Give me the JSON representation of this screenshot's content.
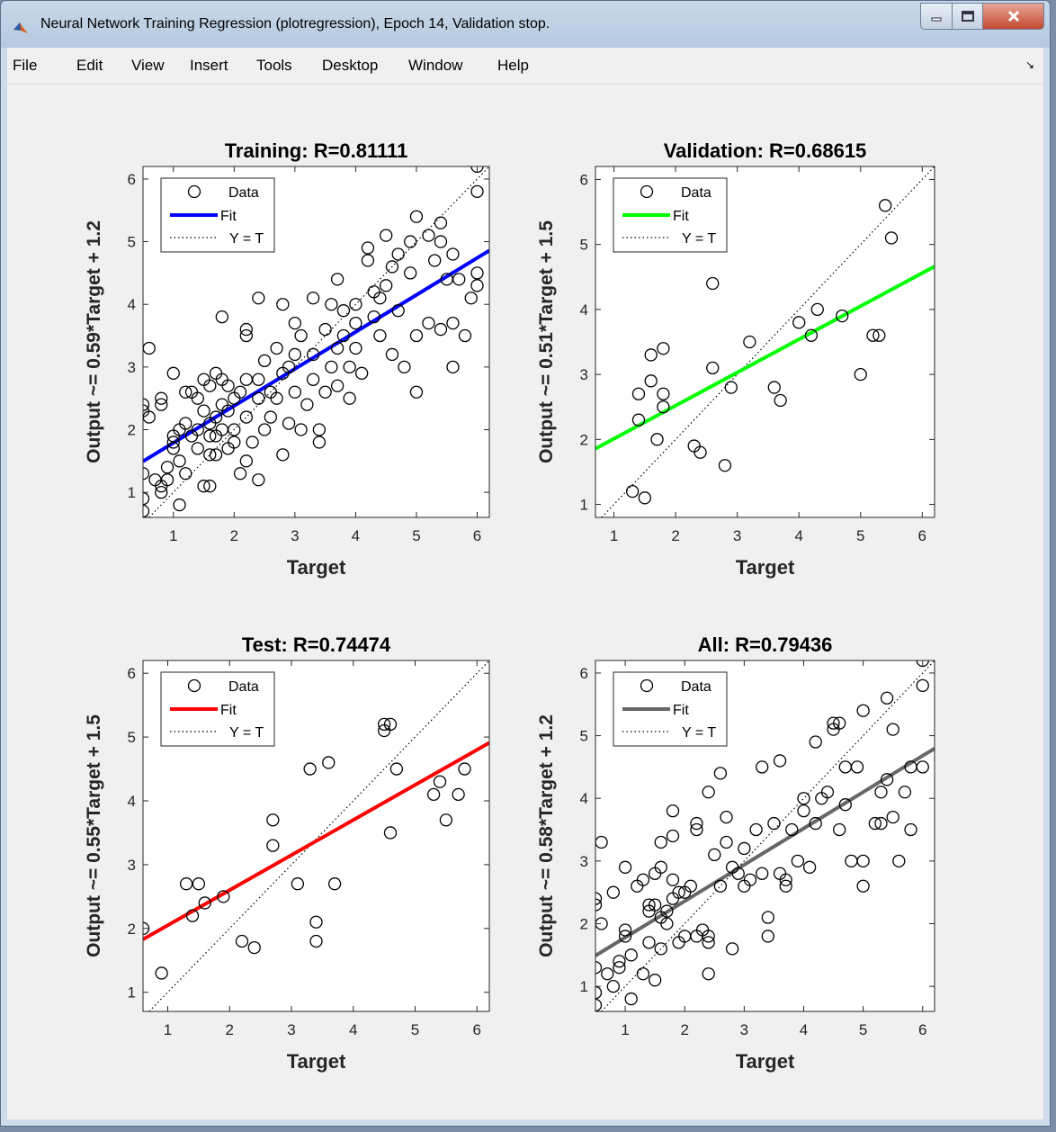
{
  "window": {
    "title": "Neural Network Training Regression (plotregression), Epoch 14, Validation stop.",
    "min_label": "",
    "max_label": "",
    "close_label": ""
  },
  "menu": [
    "File",
    "Edit",
    "View",
    "Insert",
    "Tools",
    "Desktop",
    "Window",
    "Help"
  ],
  "legend_labels": [
    "Data",
    "Fit",
    "Y = T"
  ],
  "colors": {
    "training": "#0000ff",
    "validation": "#00ff00",
    "test": "#ff0000",
    "all": "#666666"
  },
  "chart_data": [
    {
      "type": "scatter",
      "title": "Training: R=0.81111",
      "xlabel": "Target",
      "ylabel": "Output ~= 0.59*Target + 1.2",
      "xlim": [
        0.5,
        6.2
      ],
      "ylim": [
        0.6,
        6.2
      ],
      "xticks": [
        1,
        2,
        3,
        4,
        5,
        6
      ],
      "yticks": [
        1,
        2,
        3,
        4,
        5,
        6
      ],
      "fit": {
        "slope": 0.59,
        "intercept": 1.2
      },
      "legend": [
        "Data",
        "Fit",
        "Y = T"
      ],
      "points": [
        [
          0.5,
          0.7
        ],
        [
          0.5,
          0.9
        ],
        [
          0.5,
          1.3
        ],
        [
          0.5,
          2.3
        ],
        [
          0.5,
          2.4
        ],
        [
          0.6,
          2.2
        ],
        [
          0.6,
          3.3
        ],
        [
          0.7,
          1.2
        ],
        [
          0.8,
          1.1
        ],
        [
          0.8,
          1.0
        ],
        [
          0.8,
          2.4
        ],
        [
          0.8,
          2.5
        ],
        [
          0.9,
          1.2
        ],
        [
          0.9,
          1.4
        ],
        [
          1.0,
          1.8
        ],
        [
          1.0,
          1.9
        ],
        [
          1.0,
          2.9
        ],
        [
          1.0,
          1.7
        ],
        [
          1.1,
          0.8
        ],
        [
          1.1,
          1.5
        ],
        [
          1.1,
          2.0
        ],
        [
          1.2,
          1.3
        ],
        [
          1.2,
          2.6
        ],
        [
          1.2,
          2.1
        ],
        [
          1.3,
          2.6
        ],
        [
          1.3,
          1.9
        ],
        [
          1.4,
          2.0
        ],
        [
          1.4,
          1.7
        ],
        [
          1.4,
          2.5
        ],
        [
          1.5,
          2.3
        ],
        [
          1.5,
          2.8
        ],
        [
          1.5,
          1.1
        ],
        [
          1.6,
          1.1
        ],
        [
          1.6,
          1.6
        ],
        [
          1.6,
          2.1
        ],
        [
          1.6,
          2.7
        ],
        [
          1.6,
          1.9
        ],
        [
          1.7,
          2.9
        ],
        [
          1.7,
          2.2
        ],
        [
          1.7,
          1.9
        ],
        [
          1.7,
          1.6
        ],
        [
          1.8,
          3.8
        ],
        [
          1.8,
          2.8
        ],
        [
          1.8,
          2.4
        ],
        [
          1.8,
          2.0
        ],
        [
          1.9,
          1.7
        ],
        [
          1.9,
          2.3
        ],
        [
          1.9,
          2.7
        ],
        [
          2.0,
          2.0
        ],
        [
          2.0,
          2.5
        ],
        [
          2.0,
          1.8
        ],
        [
          2.1,
          2.6
        ],
        [
          2.1,
          1.3
        ],
        [
          2.2,
          2.8
        ],
        [
          2.2,
          3.5
        ],
        [
          2.2,
          2.2
        ],
        [
          2.2,
          1.5
        ],
        [
          2.2,
          3.6
        ],
        [
          2.3,
          1.8
        ],
        [
          2.4,
          4.1
        ],
        [
          2.4,
          2.8
        ],
        [
          2.4,
          2.5
        ],
        [
          2.4,
          1.2
        ],
        [
          2.5,
          2.0
        ],
        [
          2.5,
          3.1
        ],
        [
          2.6,
          2.2
        ],
        [
          2.6,
          2.6
        ],
        [
          2.7,
          3.3
        ],
        [
          2.7,
          2.5
        ],
        [
          2.8,
          1.6
        ],
        [
          2.8,
          4.0
        ],
        [
          2.8,
          2.9
        ],
        [
          2.9,
          3.0
        ],
        [
          2.9,
          2.1
        ],
        [
          3.0,
          3.2
        ],
        [
          3.0,
          3.7
        ],
        [
          3.0,
          2.6
        ],
        [
          3.1,
          2.0
        ],
        [
          3.1,
          3.5
        ],
        [
          3.2,
          2.4
        ],
        [
          3.3,
          2.8
        ],
        [
          3.3,
          3.2
        ],
        [
          3.3,
          4.1
        ],
        [
          3.4,
          2.0
        ],
        [
          3.4,
          1.8
        ],
        [
          3.5,
          3.6
        ],
        [
          3.5,
          2.6
        ],
        [
          3.6,
          4.0
        ],
        [
          3.6,
          3.0
        ],
        [
          3.7,
          4.4
        ],
        [
          3.7,
          3.3
        ],
        [
          3.7,
          2.7
        ],
        [
          3.8,
          3.5
        ],
        [
          3.8,
          3.9
        ],
        [
          3.9,
          3.0
        ],
        [
          3.9,
          2.5
        ],
        [
          4.0,
          4.0
        ],
        [
          4.0,
          3.7
        ],
        [
          4.0,
          3.3
        ],
        [
          4.1,
          2.9
        ],
        [
          4.2,
          4.9
        ],
        [
          4.2,
          4.7
        ],
        [
          4.3,
          3.8
        ],
        [
          4.3,
          4.2
        ],
        [
          4.4,
          4.1
        ],
        [
          4.4,
          3.5
        ],
        [
          4.5,
          5.1
        ],
        [
          4.5,
          4.3
        ],
        [
          4.6,
          4.6
        ],
        [
          4.6,
          3.2
        ],
        [
          4.7,
          4.8
        ],
        [
          4.7,
          3.9
        ],
        [
          4.8,
          3.0
        ],
        [
          4.9,
          4.5
        ],
        [
          4.9,
          5.0
        ],
        [
          5.0,
          2.6
        ],
        [
          5.0,
          5.4
        ],
        [
          5.0,
          3.5
        ],
        [
          5.2,
          3.7
        ],
        [
          5.2,
          5.1
        ],
        [
          5.3,
          4.7
        ],
        [
          5.4,
          5.3
        ],
        [
          5.4,
          5.0
        ],
        [
          5.4,
          3.6
        ],
        [
          5.5,
          4.4
        ],
        [
          5.6,
          4.8
        ],
        [
          5.6,
          3.0
        ],
        [
          5.6,
          3.7
        ],
        [
          5.7,
          4.4
        ],
        [
          5.8,
          3.5
        ],
        [
          5.9,
          4.1
        ],
        [
          6.0,
          4.5
        ],
        [
          6.0,
          4.3
        ],
        [
          6.0,
          5.8
        ],
        [
          6.0,
          6.2
        ]
      ]
    },
    {
      "type": "scatter",
      "title": "Validation: R=0.68615",
      "xlabel": "Target",
      "ylabel": "Output ~= 0.51*Target + 1.5",
      "xlim": [
        0.7,
        6.2
      ],
      "ylim": [
        0.8,
        6.2
      ],
      "xticks": [
        1,
        2,
        3,
        4,
        5,
        6
      ],
      "yticks": [
        1,
        2,
        3,
        4,
        5,
        6
      ],
      "fit": {
        "slope": 0.51,
        "intercept": 1.5
      },
      "legend": [
        "Data",
        "Fit",
        "Y = T"
      ],
      "points": [
        [
          1.3,
          1.2
        ],
        [
          1.4,
          2.7
        ],
        [
          1.4,
          2.3
        ],
        [
          1.5,
          1.1
        ],
        [
          1.6,
          3.3
        ],
        [
          1.6,
          2.9
        ],
        [
          1.7,
          2.0
        ],
        [
          1.8,
          3.4
        ],
        [
          1.8,
          2.7
        ],
        [
          1.8,
          2.5
        ],
        [
          2.3,
          1.9
        ],
        [
          2.4,
          1.8
        ],
        [
          2.6,
          4.4
        ],
        [
          2.6,
          3.1
        ],
        [
          2.8,
          1.6
        ],
        [
          2.9,
          2.8
        ],
        [
          3.2,
          3.5
        ],
        [
          3.6,
          2.8
        ],
        [
          3.7,
          2.6
        ],
        [
          4.0,
          3.8
        ],
        [
          4.2,
          3.6
        ],
        [
          4.3,
          4.0
        ],
        [
          4.7,
          3.9
        ],
        [
          5.0,
          3.0
        ],
        [
          5.2,
          3.6
        ],
        [
          5.3,
          3.6
        ],
        [
          5.4,
          5.6
        ],
        [
          5.5,
          5.1
        ]
      ]
    },
    {
      "type": "scatter",
      "title": "Test: R=0.74474",
      "xlabel": "Target",
      "ylabel": "Output ~= 0.55*Target + 1.5",
      "xlim": [
        0.6,
        6.2
      ],
      "ylim": [
        0.7,
        6.2
      ],
      "xticks": [
        1,
        2,
        3,
        4,
        5,
        6
      ],
      "yticks": [
        1,
        2,
        3,
        4,
        5,
        6
      ],
      "fit": {
        "slope": 0.55,
        "intercept": 1.5
      },
      "legend": [
        "Data",
        "Fit",
        "Y = T"
      ],
      "points": [
        [
          0.6,
          2.0
        ],
        [
          0.9,
          1.3
        ],
        [
          1.3,
          2.7
        ],
        [
          1.4,
          2.2
        ],
        [
          1.5,
          2.7
        ],
        [
          1.6,
          2.4
        ],
        [
          1.9,
          2.5
        ],
        [
          2.2,
          1.8
        ],
        [
          2.4,
          1.7
        ],
        [
          2.7,
          3.7
        ],
        [
          2.7,
          3.3
        ],
        [
          3.1,
          2.7
        ],
        [
          3.3,
          4.5
        ],
        [
          3.4,
          2.1
        ],
        [
          3.4,
          1.8
        ],
        [
          3.6,
          4.6
        ],
        [
          3.7,
          2.7
        ],
        [
          4.5,
          5.2
        ],
        [
          4.5,
          5.1
        ],
        [
          4.6,
          5.2
        ],
        [
          4.6,
          3.5
        ],
        [
          4.7,
          4.5
        ],
        [
          5.3,
          4.1
        ],
        [
          5.4,
          4.3
        ],
        [
          5.5,
          3.7
        ],
        [
          5.7,
          4.1
        ],
        [
          5.8,
          4.5
        ]
      ]
    },
    {
      "type": "scatter",
      "title": "All: R=0.79436",
      "xlabel": "Target",
      "ylabel": "Output ~= 0.58*Target + 1.2",
      "xlim": [
        0.5,
        6.2
      ],
      "ylim": [
        0.6,
        6.2
      ],
      "xticks": [
        1,
        2,
        3,
        4,
        5,
        6
      ],
      "yticks": [
        1,
        2,
        3,
        4,
        5,
        6
      ],
      "fit": {
        "slope": 0.58,
        "intercept": 1.2
      },
      "legend": [
        "Data",
        "Fit",
        "Y = T"
      ],
      "points": [
        [
          0.5,
          0.7
        ],
        [
          0.5,
          0.9
        ],
        [
          0.5,
          1.3
        ],
        [
          0.5,
          2.3
        ],
        [
          0.5,
          2.4
        ],
        [
          0.6,
          2.0
        ],
        [
          0.6,
          3.3
        ],
        [
          0.7,
          1.2
        ],
        [
          0.8,
          1.0
        ],
        [
          0.8,
          2.5
        ],
        [
          0.9,
          1.3
        ],
        [
          0.9,
          1.4
        ],
        [
          1.0,
          1.8
        ],
        [
          1.0,
          1.9
        ],
        [
          1.0,
          2.9
        ],
        [
          1.1,
          0.8
        ],
        [
          1.1,
          1.5
        ],
        [
          1.2,
          2.6
        ],
        [
          1.3,
          2.7
        ],
        [
          1.3,
          1.2
        ],
        [
          1.4,
          2.3
        ],
        [
          1.4,
          2.2
        ],
        [
          1.4,
          1.7
        ],
        [
          1.5,
          2.3
        ],
        [
          1.5,
          2.8
        ],
        [
          1.5,
          1.1
        ],
        [
          1.6,
          3.3
        ],
        [
          1.6,
          1.6
        ],
        [
          1.6,
          2.1
        ],
        [
          1.6,
          2.9
        ],
        [
          1.7,
          2.2
        ],
        [
          1.7,
          2.0
        ],
        [
          1.8,
          3.8
        ],
        [
          1.8,
          2.7
        ],
        [
          1.8,
          3.4
        ],
        [
          1.8,
          2.4
        ],
        [
          1.9,
          1.7
        ],
        [
          1.9,
          2.5
        ],
        [
          2.0,
          2.5
        ],
        [
          2.0,
          1.8
        ],
        [
          2.1,
          2.6
        ],
        [
          2.2,
          1.8
        ],
        [
          2.2,
          3.5
        ],
        [
          2.2,
          3.6
        ],
        [
          2.3,
          1.9
        ],
        [
          2.4,
          4.1
        ],
        [
          2.4,
          1.8
        ],
        [
          2.4,
          1.2
        ],
        [
          2.4,
          1.7
        ],
        [
          2.5,
          3.1
        ],
        [
          2.6,
          4.4
        ],
        [
          2.6,
          2.6
        ],
        [
          2.7,
          3.7
        ],
        [
          2.7,
          3.3
        ],
        [
          2.8,
          1.6
        ],
        [
          2.8,
          2.9
        ],
        [
          2.9,
          2.8
        ],
        [
          3.0,
          3.2
        ],
        [
          3.0,
          2.6
        ],
        [
          3.1,
          2.7
        ],
        [
          3.2,
          3.5
        ],
        [
          3.3,
          4.5
        ],
        [
          3.3,
          2.8
        ],
        [
          3.4,
          2.1
        ],
        [
          3.4,
          1.8
        ],
        [
          3.5,
          3.6
        ],
        [
          3.6,
          4.6
        ],
        [
          3.6,
          2.8
        ],
        [
          3.7,
          2.7
        ],
        [
          3.7,
          2.6
        ],
        [
          3.8,
          3.5
        ],
        [
          3.9,
          3.0
        ],
        [
          4.0,
          4.0
        ],
        [
          4.0,
          3.8
        ],
        [
          4.1,
          2.9
        ],
        [
          4.2,
          4.9
        ],
        [
          4.2,
          3.6
        ],
        [
          4.3,
          4.0
        ],
        [
          4.4,
          4.1
        ],
        [
          4.5,
          5.2
        ],
        [
          4.5,
          5.1
        ],
        [
          4.6,
          5.2
        ],
        [
          4.6,
          3.5
        ],
        [
          4.7,
          3.9
        ],
        [
          4.7,
          4.5
        ],
        [
          4.8,
          3.0
        ],
        [
          4.9,
          4.5
        ],
        [
          5.0,
          3.0
        ],
        [
          5.0,
          5.4
        ],
        [
          5.0,
          2.6
        ],
        [
          5.2,
          3.6
        ],
        [
          5.3,
          3.6
        ],
        [
          5.3,
          4.1
        ],
        [
          5.4,
          5.6
        ],
        [
          5.4,
          4.3
        ],
        [
          5.5,
          5.1
        ],
        [
          5.5,
          3.7
        ],
        [
          5.6,
          3.0
        ],
        [
          5.7,
          4.1
        ],
        [
          5.8,
          4.5
        ],
        [
          5.8,
          3.5
        ],
        [
          6.0,
          4.5
        ],
        [
          6.0,
          5.8
        ],
        [
          6.0,
          6.2
        ]
      ]
    }
  ]
}
